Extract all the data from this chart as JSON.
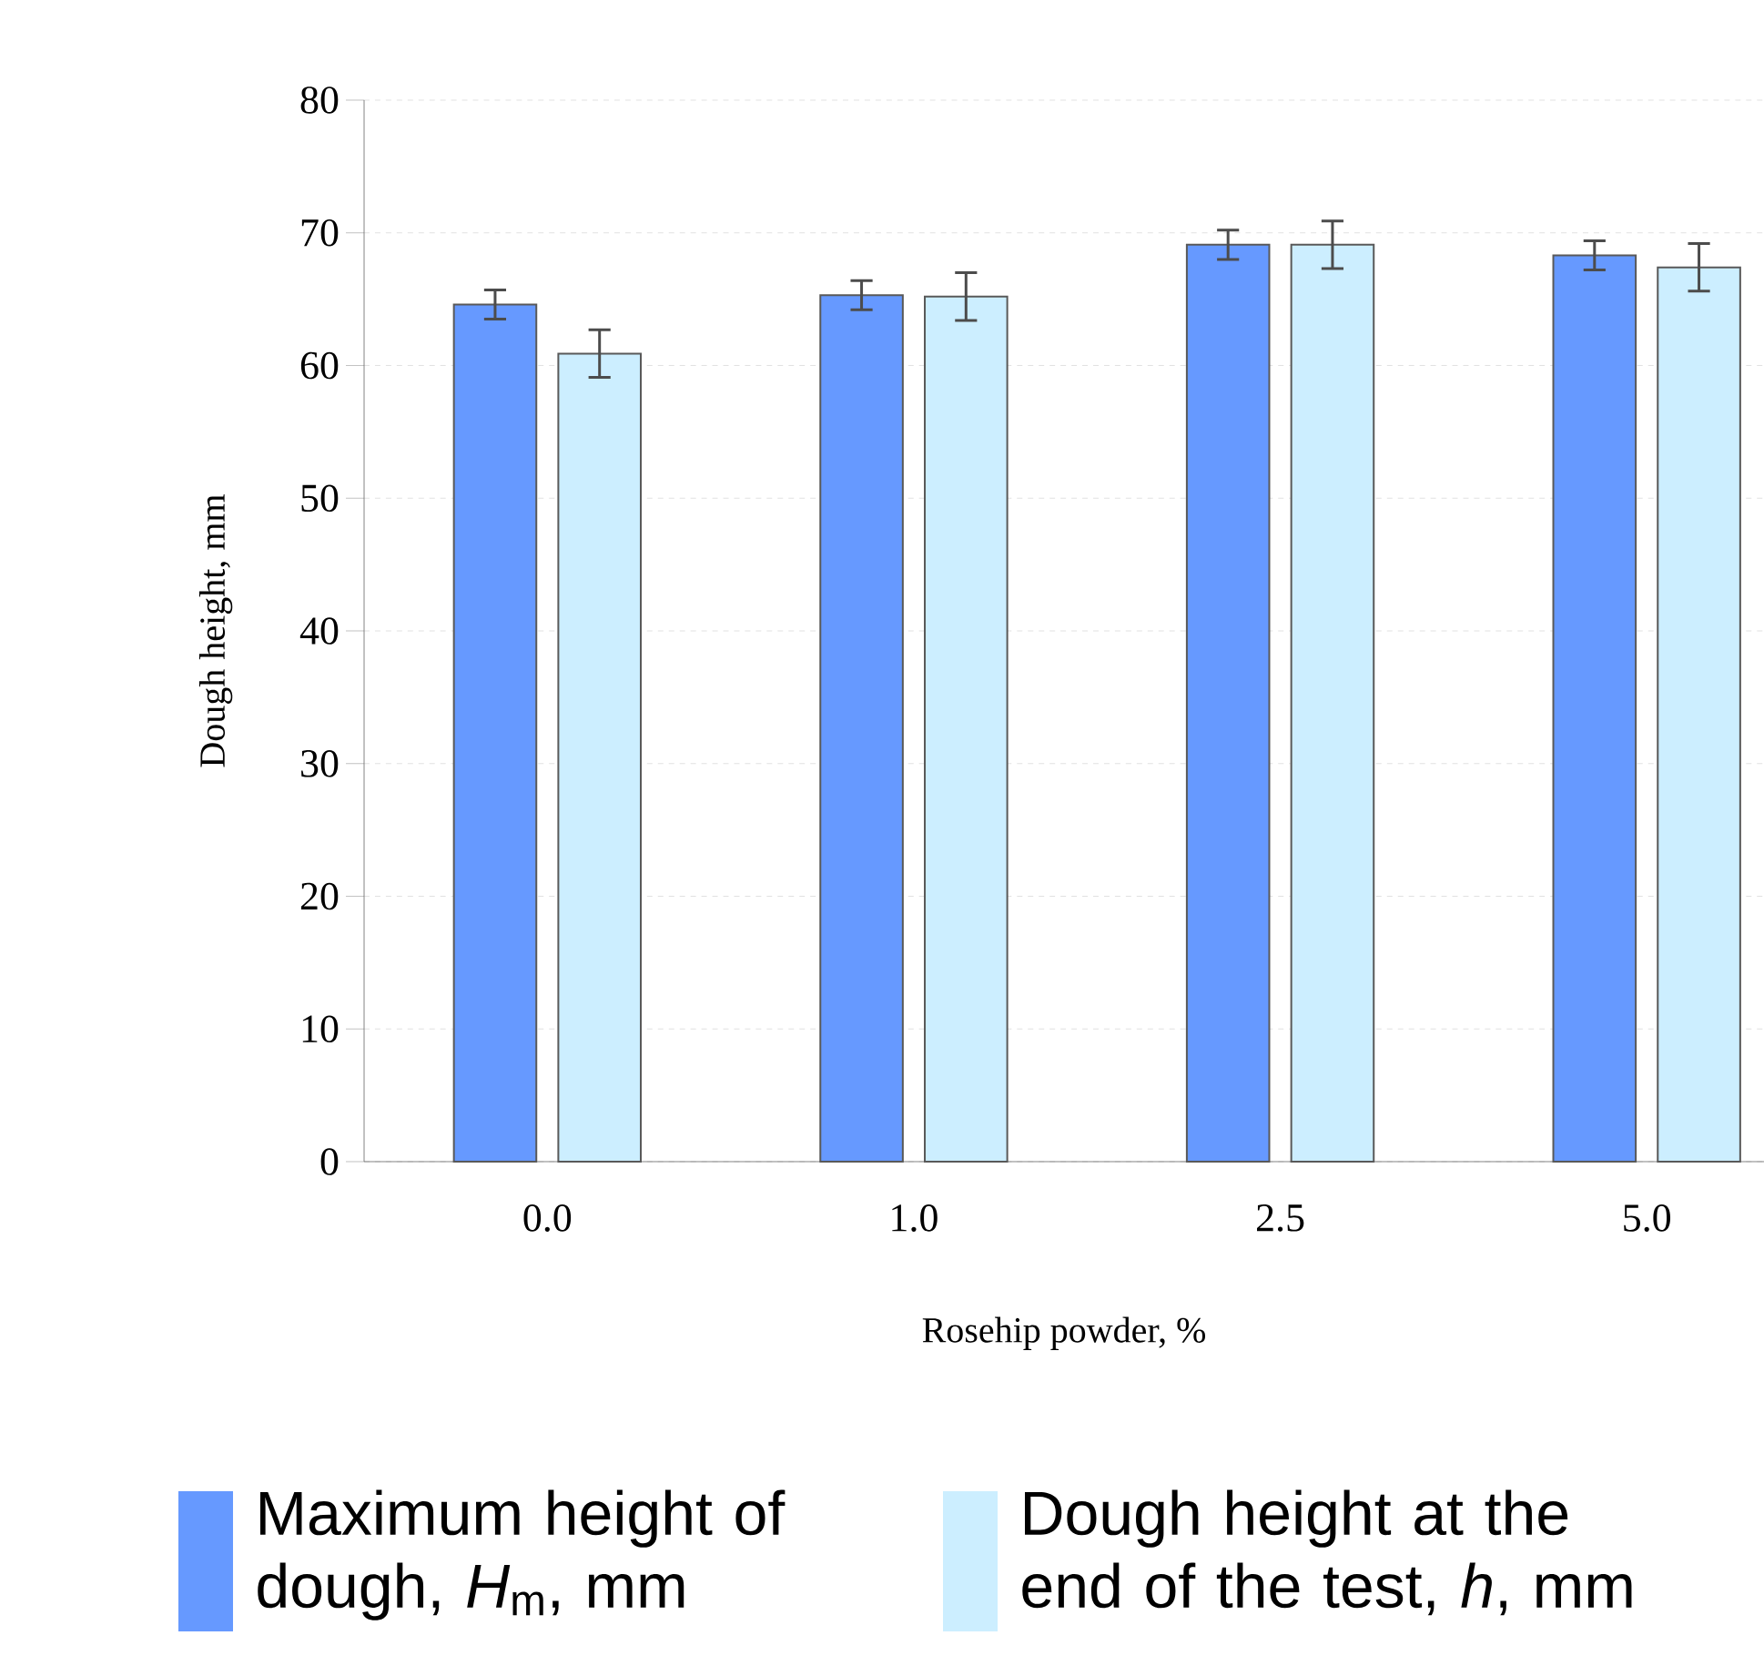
{
  "chart_data": {
    "type": "bar",
    "xlabel": "Rosehip powder, %",
    "ylabel": "Dough height, mm",
    "categories": [
      "0.0",
      "1.0",
      "2.5",
      "5.0"
    ],
    "series": [
      {
        "name": "Maximum height of dough, *H*$_{m}$, mm",
        "color": "#6699ff",
        "values": [
          64.6,
          65.3,
          69.1,
          68.3
        ],
        "errors": [
          1.1,
          1.1,
          1.1,
          1.1
        ]
      },
      {
        "name": "Dough height at the end of the test, *h*, mm",
        "color": "#cceeff",
        "values": [
          60.9,
          65.2,
          69.1,
          67.4
        ],
        "errors": [
          1.8,
          1.8,
          1.8,
          1.8
        ]
      }
    ],
    "ylim": [
      0,
      80
    ],
    "yticks": [
      0,
      10,
      20,
      30,
      40,
      50,
      60,
      70,
      80
    ],
    "grid": "y",
    "legend": "bottom"
  }
}
